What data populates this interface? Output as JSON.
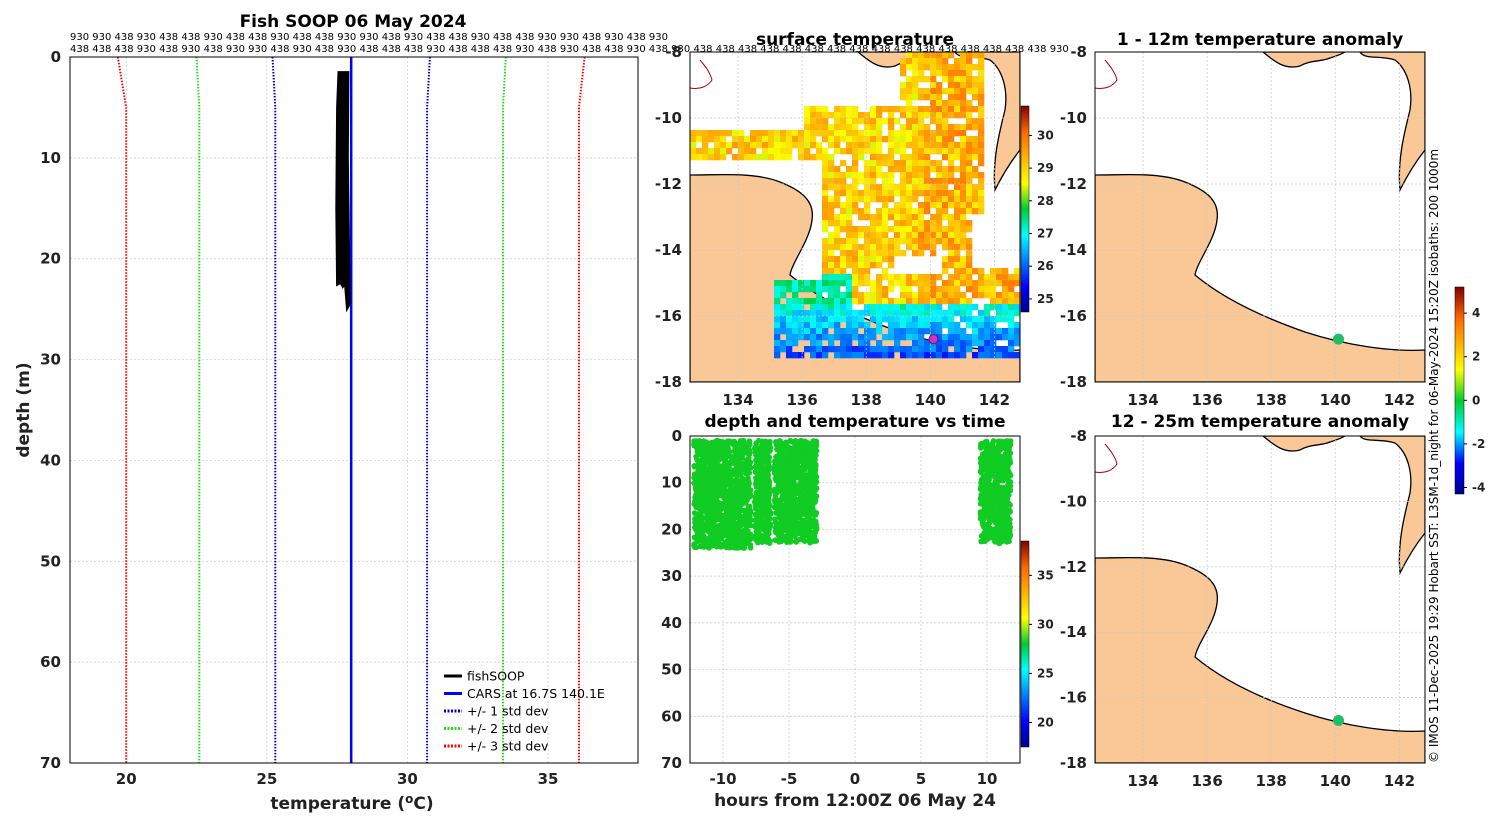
{
  "chart_data": [
    {
      "type": "line",
      "title": "Fish SOOP 06 May 2024",
      "xlabel": "temperature",
      "xlabel_unit": "(°C)",
      "ylabel": "depth (m)",
      "xlim": [
        18,
        38.2
      ],
      "ylim": [
        70,
        0
      ],
      "xticks": [
        20,
        25,
        30,
        35
      ],
      "yticks": [
        0,
        10,
        20,
        30,
        40,
        50,
        60,
        70
      ],
      "top_annotation_rows": [
        "930 930 438 930 438 438 930 438 438 930 438 438 930 930 438 930 438 438 930 438 438 930 930 438 930 438 930",
        "438 438 438 930 438 930 438 930 930 438 930 438 930 438 438 438 930 438 438 438 930 438 930 438 438 930 438 930 438 438 438 438 438 438 438 438 438 438 438 438 438 438 438 438 930"
      ],
      "series": [
        {
          "name": "fishSOOP",
          "color": "#000000",
          "style": "solid",
          "note": "dense cluster of profiles, temperature ~27.5-27.9 °C, depth 1.5-24.5 m"
        },
        {
          "name": "CARS at 16.7S 140.1E",
          "color": "#0000ff",
          "style": "solid",
          "x": [
            28.0,
            28.0
          ],
          "y": [
            0,
            70
          ]
        },
        {
          "name": "+/- 1 std dev",
          "color": "#0000cc",
          "style": "dotted",
          "lower": {
            "x": [
              25.2,
              25.3,
              25.3
            ],
            "y": [
              0,
              5,
              70
            ]
          },
          "upper": {
            "x": [
              30.8,
              30.7,
              30.7
            ],
            "y": [
              0,
              5,
              70
            ]
          }
        },
        {
          "name": "+/- 2 std dev",
          "color": "#22dd22",
          "style": "dotted",
          "lower": {
            "x": [
              22.5,
              22.6,
              22.6
            ],
            "y": [
              0,
              5,
              70
            ]
          },
          "upper": {
            "x": [
              33.5,
              33.4,
              33.4
            ],
            "y": [
              0,
              5,
              70
            ]
          }
        },
        {
          "name": "+/- 3 std dev",
          "color": "#ff0000",
          "style": "dotted",
          "lower": {
            "x": [
              19.7,
              20.0,
              20.0
            ],
            "y": [
              0,
              5,
              70
            ]
          },
          "upper": {
            "x": [
              36.3,
              36.1,
              36.1
            ],
            "y": [
              0,
              5,
              70
            ]
          }
        }
      ],
      "legend_position": "bottom-right"
    },
    {
      "type": "heatmap",
      "title": "surface temperature",
      "xlim": [
        132.5,
        142.8
      ],
      "ylim": [
        -18,
        -8
      ],
      "xticks": [
        134,
        136,
        138,
        140,
        142
      ],
      "yticks": [
        -8,
        -10,
        -12,
        -14,
        -16,
        -18
      ],
      "colorbar": {
        "min": 24.6,
        "max": 30.9,
        "ticks": [
          25,
          26,
          27,
          28,
          29,
          30
        ]
      },
      "marker": {
        "lon": 140.1,
        "lat": -16.7,
        "color": "#cc33cc"
      }
    },
    {
      "type": "scatter",
      "title": "depth and temperature vs time",
      "xlabel": "hours from 12:00Z 06 May 24",
      "xlim": [
        -12.5,
        12.5
      ],
      "ylim": [
        70,
        0
      ],
      "xticks": [
        -10,
        -5,
        0,
        5,
        10
      ],
      "yticks": [
        0,
        10,
        20,
        30,
        40,
        50,
        60,
        70
      ],
      "color_value": "~27-28 °C",
      "clusters": [
        {
          "x0": -12.2,
          "x1": -7.9,
          "depth0": 1,
          "depth1": 24
        },
        {
          "x0": -7.6,
          "x1": -6.4,
          "depth0": 1,
          "depth1": 23
        },
        {
          "x0": -6.1,
          "x1": -2.9,
          "depth0": 1,
          "depth1": 23
        },
        {
          "x0": 9.5,
          "x1": 11.8,
          "depth0": 1,
          "depth1": 23
        }
      ],
      "colorbar": {
        "min": 17.5,
        "max": 38.5,
        "ticks": [
          20,
          25,
          30,
          35
        ]
      }
    },
    {
      "type": "heatmap",
      "title": "1 - 12m temperature anomaly",
      "xlim": [
        132.5,
        142.8
      ],
      "ylim": [
        -18,
        -8
      ],
      "xticks": [
        134,
        136,
        138,
        140,
        142
      ],
      "yticks": [
        -8,
        -10,
        -12,
        -14,
        -16,
        -18
      ],
      "colorbar": {
        "min": -4.3,
        "max": 5.2,
        "ticks": [
          -4,
          -2,
          0,
          2,
          4
        ]
      },
      "anomaly_point": {
        "lon": 140.1,
        "lat": -16.7,
        "value": 0.3
      }
    },
    {
      "type": "heatmap",
      "title": "12 - 25m temperature anomaly",
      "xlim": [
        132.5,
        142.8
      ],
      "ylim": [
        -18,
        -8
      ],
      "xticks": [
        134,
        136,
        138,
        140,
        142
      ],
      "yticks": [
        -8,
        -10,
        -12,
        -14,
        -16,
        -18
      ],
      "anomaly_point": {
        "lon": 140.1,
        "lat": -16.7,
        "value": 0.3
      }
    }
  ],
  "credit": "© IMOS 11-Dec-2025 19:29 Hobart SST: L3SM-1d_night for 06-May-2024 15:20Z  isobaths: 200  1000m",
  "colors": {
    "land": "#f9c896",
    "coast": "#000000",
    "png_coast": "#aa0000",
    "grid": "#c8c8c8"
  }
}
